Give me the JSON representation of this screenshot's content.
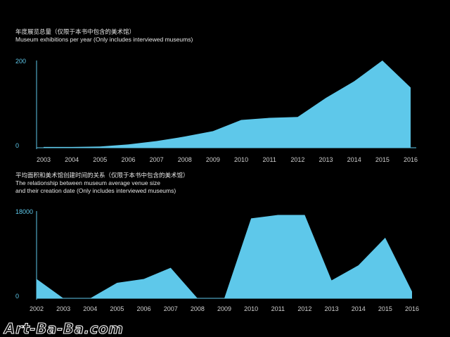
{
  "accent_color": "#5ec8ea",
  "watermark": "Art-Ba-Ba.com",
  "chart_data": [
    {
      "type": "area",
      "title_zh": "年度展览总量（仅限于本书中包含的美术馆）",
      "title": "Museum exhibitions per year (Only includes interviewed museums)",
      "categories": [
        "2003",
        "2004",
        "2005",
        "2006",
        "2007",
        "2008",
        "2009",
        "2010",
        "2011",
        "2012",
        "2013",
        "2014",
        "2015",
        "2016"
      ],
      "values": [
        2,
        2,
        3,
        8,
        16,
        27,
        40,
        67,
        72,
        74,
        120,
        160,
        210,
        145
      ],
      "yticks": [
        "200",
        "0"
      ],
      "ylim": [
        0,
        210
      ]
    },
    {
      "type": "area",
      "title_zh": "平均面积和美术馆创建时间的关系（仅限于本书中包含的美术馆）",
      "title_line1": "The relationship between museum average venue size",
      "title_line2": "and their creation date (Only includes interviewed museums)",
      "categories": [
        "2002",
        "2003",
        "2004",
        "2005",
        "2006",
        "2007",
        "2008",
        "2009",
        "2010",
        "2011",
        "2012",
        "2013",
        "2014",
        "2015",
        "2016"
      ],
      "values": [
        4000,
        0,
        0,
        3200,
        4000,
        6300,
        0,
        0,
        16500,
        17200,
        17200,
        3700,
        6800,
        12500,
        1400
      ],
      "yticks": [
        "18000",
        "0"
      ],
      "ylim": [
        0,
        18000
      ]
    }
  ]
}
